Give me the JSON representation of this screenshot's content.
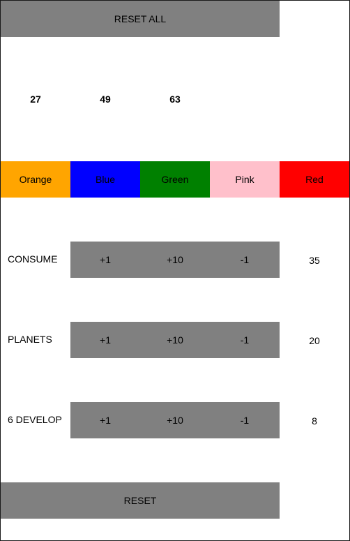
{
  "reset_all_label": "RESET ALL",
  "reset_label": "RESET",
  "counts": [
    "27",
    "49",
    "63"
  ],
  "colors": [
    {
      "label": "Orange",
      "bg": "#FFA500",
      "fg": "#000000"
    },
    {
      "label": "Blue",
      "bg": "#0000FF",
      "fg": "#000000"
    },
    {
      "label": "Green",
      "bg": "#008000",
      "fg": "#000000"
    },
    {
      "label": "Pink",
      "bg": "#FFC0CB",
      "fg": "#000000"
    },
    {
      "label": "Red",
      "bg": "#FF0000",
      "fg": "#000000"
    }
  ],
  "rows": [
    {
      "label": "CONSUME",
      "plus1": "+1",
      "plus10": "+10",
      "minus1": "-1",
      "value": "35"
    },
    {
      "label": "PLANETS",
      "plus1": "+1",
      "plus10": "+10",
      "minus1": "-1",
      "value": "20"
    },
    {
      "label": "6 DEVELOP",
      "plus1": "+1",
      "plus10": "+10",
      "minus1": "-1",
      "value": "8"
    }
  ],
  "theme": {
    "button_gray": "#808080",
    "background": "#FFFFFF",
    "border": "#1A1A1A"
  }
}
